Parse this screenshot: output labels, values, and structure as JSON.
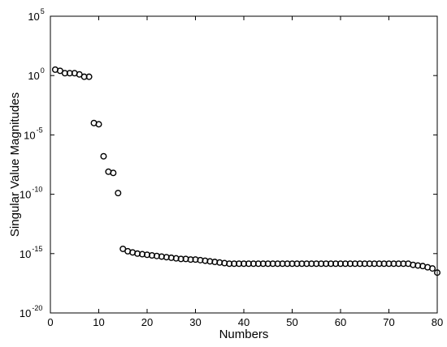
{
  "chart_data": {
    "type": "scatter",
    "title": "",
    "xlabel": "Numbers",
    "ylabel": "Singular Value Magnitudes",
    "xlim": [
      0,
      80
    ],
    "ylim": [
      1e-20,
      100000.0
    ],
    "yscale": "log",
    "x_ticks": [
      "0",
      "10",
      "20",
      "30",
      "40",
      "50",
      "60",
      "70",
      "80"
    ],
    "y_ticks": [
      {
        "base": "10",
        "exp": "5"
      },
      {
        "base": "10",
        "exp": "0"
      },
      {
        "base": "10",
        "exp": "-5"
      },
      {
        "base": "10",
        "exp": "-10"
      },
      {
        "base": "10",
        "exp": "-15"
      },
      {
        "base": "10",
        "exp": "-20"
      }
    ],
    "grid": false,
    "marker": "open-circle",
    "colors": {
      "marker": "#000000",
      "axes": "#000000",
      "background": "#ffffff"
    },
    "series": [
      {
        "x": [
          1,
          2,
          3,
          4,
          5,
          6,
          7,
          8,
          9,
          10,
          11,
          12,
          13,
          14,
          15,
          16,
          17,
          18,
          19,
          20,
          21,
          22,
          23,
          24,
          25,
          26,
          27,
          28,
          29,
          30,
          31,
          32,
          33,
          34,
          35,
          36,
          37,
          38,
          39,
          40,
          41,
          42,
          43,
          44,
          45,
          46,
          47,
          48,
          49,
          50,
          51,
          52,
          53,
          54,
          55,
          56,
          57,
          58,
          59,
          60,
          61,
          62,
          63,
          64,
          65,
          66,
          67,
          68,
          69,
          70,
          71,
          72,
          73,
          74,
          75,
          76,
          77,
          78,
          79,
          80
        ],
        "log10_y": [
          0.5,
          0.4,
          0.2,
          0.2,
          0.2,
          0.1,
          -0.1,
          -0.1,
          -4,
          -4.1,
          -6.8,
          -8.1,
          -8.2,
          -9.9,
          -14.6,
          -14.8,
          -14.9,
          -15,
          -15.05,
          -15.1,
          -15.15,
          -15.2,
          -15.25,
          -15.3,
          -15.35,
          -15.4,
          -15.45,
          -15.45,
          -15.5,
          -15.5,
          -15.55,
          -15.6,
          -15.65,
          -15.7,
          -15.75,
          -15.8,
          -15.85,
          -15.85,
          -15.85,
          -15.85,
          -15.85,
          -15.85,
          -15.85,
          -15.85,
          -15.85,
          -15.85,
          -15.85,
          -15.85,
          -15.85,
          -15.85,
          -15.85,
          -15.85,
          -15.85,
          -15.85,
          -15.85,
          -15.85,
          -15.85,
          -15.85,
          -15.85,
          -15.85,
          -15.85,
          -15.85,
          -15.85,
          -15.85,
          -15.85,
          -15.85,
          -15.85,
          -15.85,
          -15.85,
          -15.85,
          -15.85,
          -15.85,
          -15.85,
          -15.85,
          -15.95,
          -16,
          -16.05,
          -16.15,
          -16.25,
          -16.6
        ]
      }
    ]
  }
}
